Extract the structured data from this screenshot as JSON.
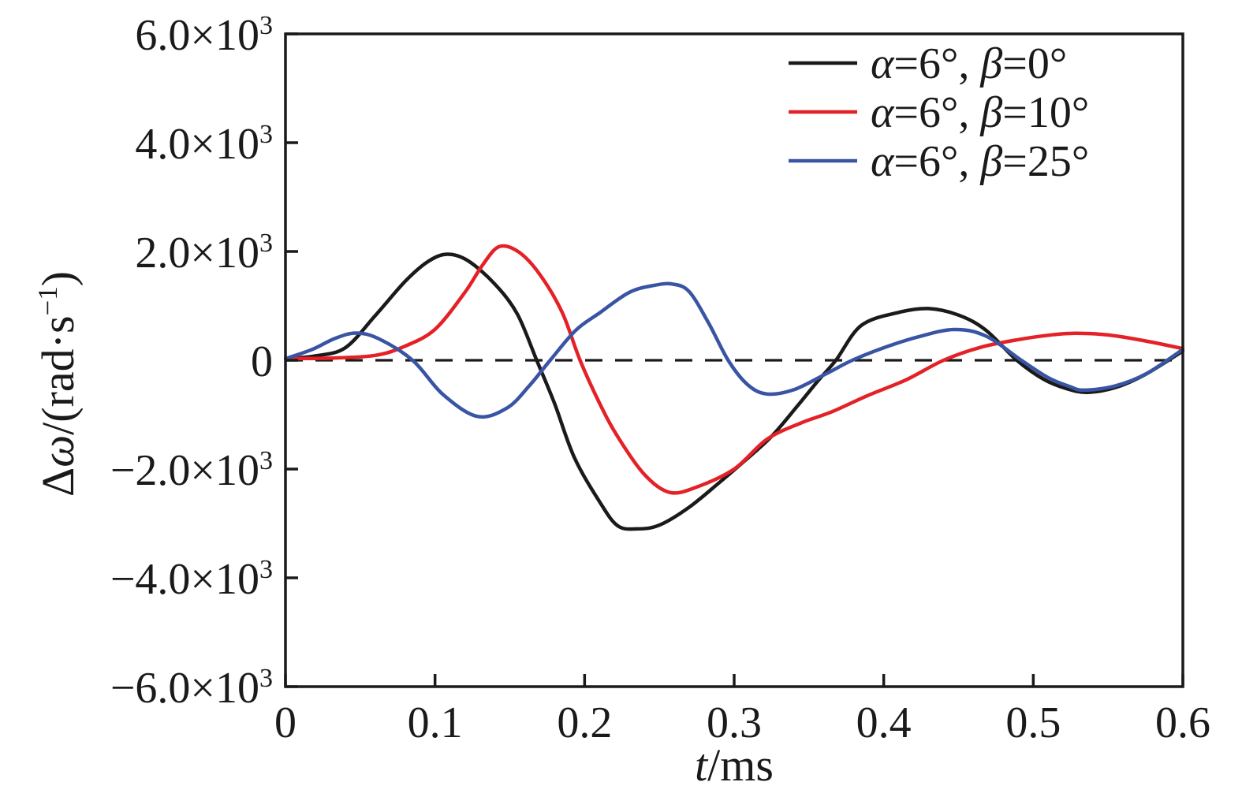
{
  "chart_data": {
    "type": "line",
    "xlabel_plain": "t/ms",
    "xlabel_segments": [
      {
        "text": "t",
        "italic": true
      },
      {
        "text": "/ms",
        "italic": false
      }
    ],
    "ylabel_plain": "Δω/(rad·s−1)",
    "ylabel_segments": [
      {
        "text": "Δ",
        "italic": false
      },
      {
        "text": "ω",
        "italic": true
      },
      {
        "text": "/(rad·s",
        "italic": false
      },
      {
        "text": "−1",
        "italic": false,
        "sup": true
      },
      {
        "text": ")",
        "italic": false
      }
    ],
    "xlim": [
      0,
      0.6
    ],
    "ylim": [
      -6000,
      6000
    ],
    "grid": false,
    "zero_line_dashed": true,
    "legend_position": "top-right-inside",
    "axis_color": "#1a1a1a",
    "background_color": "#ffffff",
    "x_ticks": [
      {
        "value": 0.0,
        "label": "0"
      },
      {
        "value": 0.1,
        "label": "0.1"
      },
      {
        "value": 0.2,
        "label": "0.2"
      },
      {
        "value": 0.3,
        "label": "0.3"
      },
      {
        "value": 0.4,
        "label": "0.4"
      },
      {
        "value": 0.5,
        "label": "0.5"
      },
      {
        "value": 0.6,
        "label": "0.6"
      }
    ],
    "y_ticks": [
      {
        "value": 6000,
        "mantissa": "6.0×10",
        "exp": "3"
      },
      {
        "value": 4000,
        "mantissa": "4.0×10",
        "exp": "3"
      },
      {
        "value": 2000,
        "mantissa": "2.0×10",
        "exp": "3"
      },
      {
        "value": 0,
        "mantissa": "0",
        "exp": ""
      },
      {
        "value": -2000,
        "mantissa": "−2.0×10",
        "exp": "3"
      },
      {
        "value": -4000,
        "mantissa": "−4.0×10",
        "exp": "3"
      },
      {
        "value": -6000,
        "mantissa": "−6.0×10",
        "exp": "3"
      }
    ],
    "series": [
      {
        "name": "alpha6-beta0",
        "label_plain": "α=6°, β=0°",
        "label_segments": [
          {
            "text": "α",
            "italic": true
          },
          {
            "text": "=6°, ",
            "italic": false
          },
          {
            "text": "β",
            "italic": true
          },
          {
            "text": "=0°",
            "italic": false
          }
        ],
        "color": "#1a1a1a",
        "points": [
          [
            0,
            30
          ],
          [
            0.02,
            80
          ],
          [
            0.04,
            230
          ],
          [
            0.06,
            820
          ],
          [
            0.08,
            1450
          ],
          [
            0.095,
            1810
          ],
          [
            0.108,
            1950
          ],
          [
            0.122,
            1830
          ],
          [
            0.14,
            1400
          ],
          [
            0.155,
            850
          ],
          [
            0.168,
            0
          ],
          [
            0.18,
            -800
          ],
          [
            0.193,
            -1780
          ],
          [
            0.21,
            -2600
          ],
          [
            0.222,
            -3040
          ],
          [
            0.235,
            -3100
          ],
          [
            0.25,
            -3030
          ],
          [
            0.27,
            -2700
          ],
          [
            0.29,
            -2250
          ],
          [
            0.307,
            -1850
          ],
          [
            0.325,
            -1400
          ],
          [
            0.342,
            -850
          ],
          [
            0.356,
            -380
          ],
          [
            0.368,
            0
          ],
          [
            0.385,
            640
          ],
          [
            0.41,
            880
          ],
          [
            0.43,
            950
          ],
          [
            0.45,
            830
          ],
          [
            0.468,
            560
          ],
          [
            0.489,
            0
          ],
          [
            0.507,
            -350
          ],
          [
            0.522,
            -520
          ],
          [
            0.536,
            -590
          ],
          [
            0.555,
            -500
          ],
          [
            0.575,
            -260
          ],
          [
            0.6,
            170
          ]
        ]
      },
      {
        "name": "alpha6-beta10",
        "label_plain": "α=6°, β=10°",
        "label_segments": [
          {
            "text": "α",
            "italic": true
          },
          {
            "text": "=6°, ",
            "italic": false
          },
          {
            "text": "β",
            "italic": true
          },
          {
            "text": "=10°",
            "italic": false
          }
        ],
        "color": "#e32127",
        "points": [
          [
            0,
            30
          ],
          [
            0.03,
            40
          ],
          [
            0.06,
            90
          ],
          [
            0.08,
            260
          ],
          [
            0.1,
            570
          ],
          [
            0.12,
            1250
          ],
          [
            0.132,
            1760
          ],
          [
            0.143,
            2090
          ],
          [
            0.156,
            1990
          ],
          [
            0.17,
            1580
          ],
          [
            0.185,
            880
          ],
          [
            0.197,
            0
          ],
          [
            0.21,
            -790
          ],
          [
            0.222,
            -1400
          ],
          [
            0.24,
            -2100
          ],
          [
            0.257,
            -2430
          ],
          [
            0.275,
            -2330
          ],
          [
            0.3,
            -2000
          ],
          [
            0.322,
            -1450
          ],
          [
            0.345,
            -1150
          ],
          [
            0.365,
            -950
          ],
          [
            0.39,
            -640
          ],
          [
            0.415,
            -360
          ],
          [
            0.44,
            0
          ],
          [
            0.465,
            240
          ],
          [
            0.49,
            380
          ],
          [
            0.51,
            460
          ],
          [
            0.528,
            495
          ],
          [
            0.55,
            465
          ],
          [
            0.575,
            355
          ],
          [
            0.6,
            215
          ]
        ]
      },
      {
        "name": "alpha6-beta25",
        "label_plain": "α=6°, β=25°",
        "label_segments": [
          {
            "text": "α",
            "italic": true
          },
          {
            "text": "=6°, ",
            "italic": false
          },
          {
            "text": "β",
            "italic": true
          },
          {
            "text": "=25°",
            "italic": false
          }
        ],
        "color": "#3a54a4",
        "points": [
          [
            0,
            30
          ],
          [
            0.018,
            200
          ],
          [
            0.033,
            400
          ],
          [
            0.047,
            500
          ],
          [
            0.062,
            400
          ],
          [
            0.085,
            0
          ],
          [
            0.105,
            -620
          ],
          [
            0.128,
            -1030
          ],
          [
            0.148,
            -880
          ],
          [
            0.163,
            -470
          ],
          [
            0.177,
            0
          ],
          [
            0.194,
            550
          ],
          [
            0.21,
            870
          ],
          [
            0.23,
            1250
          ],
          [
            0.247,
            1380
          ],
          [
            0.259,
            1400
          ],
          [
            0.27,
            1260
          ],
          [
            0.283,
            680
          ],
          [
            0.296,
            0
          ],
          [
            0.309,
            -450
          ],
          [
            0.322,
            -620
          ],
          [
            0.34,
            -540
          ],
          [
            0.362,
            -240
          ],
          [
            0.379,
            0
          ],
          [
            0.4,
            230
          ],
          [
            0.423,
            430
          ],
          [
            0.447,
            565
          ],
          [
            0.468,
            450
          ],
          [
            0.492,
            0
          ],
          [
            0.51,
            -320
          ],
          [
            0.524,
            -480
          ],
          [
            0.534,
            -550
          ],
          [
            0.555,
            -470
          ],
          [
            0.576,
            -240
          ],
          [
            0.6,
            200
          ]
        ]
      }
    ]
  }
}
